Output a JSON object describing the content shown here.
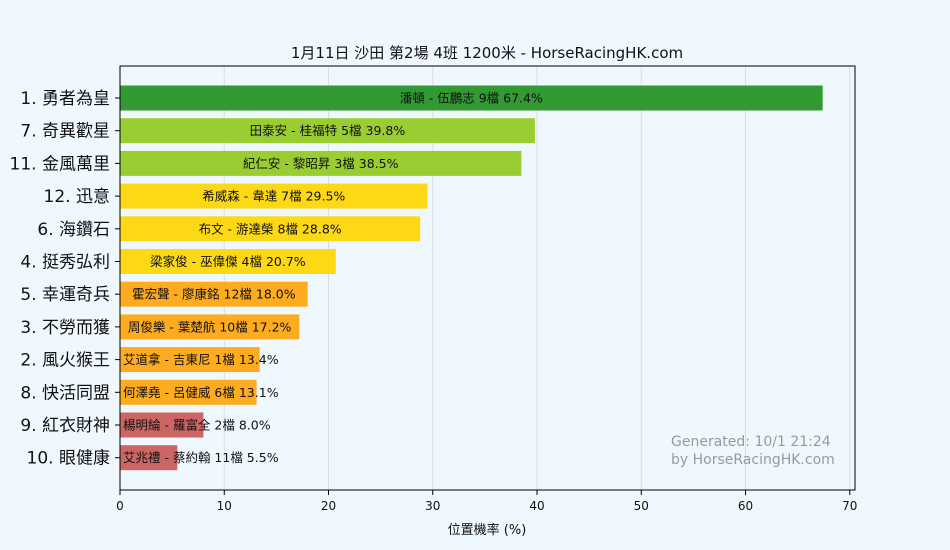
{
  "chart_data": {
    "type": "bar",
    "orientation": "horizontal",
    "title": "1月11日  沙田  第2場  4班  1200米 - HorseRacingHK.com",
    "xlabel": "位置機率 (%)",
    "ylabel": "",
    "xlim": [
      0,
      70.5
    ],
    "xticks": [
      0,
      10,
      20,
      30,
      40,
      50,
      60,
      70
    ],
    "grid": "vertical",
    "categories": [
      "1. 勇者為皇",
      "7. 奇異歡星",
      "11. 金風萬里",
      "12. 迅意",
      "6. 海鑽石",
      "4. 挺秀弘利",
      "5. 幸運奇兵",
      "3. 不勞而獲",
      "2. 風火猴王",
      "8. 快活同盟",
      "9. 紅衣財神",
      "10. 眼健康"
    ],
    "values": [
      67.4,
      39.8,
      38.5,
      29.5,
      28.8,
      20.7,
      18.0,
      17.2,
      13.4,
      13.1,
      8.0,
      5.5
    ],
    "bar_labels": [
      "潘頓 - 伍鵬志 9檔  67.4%",
      "田泰安 - 桂福特 5檔  39.8%",
      "紀仁安 - 黎昭昇 3檔  38.5%",
      "希威森 - 韋達 7檔  29.5%",
      "布文 - 游達榮 8檔  28.8%",
      "梁家俊 - 巫偉傑 4檔  20.7%",
      "霍宏聲 - 廖康銘 12檔  18.0%",
      "周俊樂 - 葉楚航 10檔  17.2%",
      "艾道拿 - 吉東尼 1檔  13.4%",
      "何澤堯 - 呂健威 6檔  13.1%",
      "楊明綸 - 羅富全 2檔  8.0%",
      "艾兆禮 - 蔡約翰 11檔  5.5%"
    ],
    "colors": [
      "#339933",
      "#9acd32",
      "#9acd32",
      "#fcd815",
      "#fcd815",
      "#fcd815",
      "#fdab20",
      "#fdab20",
      "#fdab20",
      "#fdab20",
      "#cd6565",
      "#cd6565"
    ],
    "watermark": [
      "Generated: 10/1 21:24",
      "by HorseRacingHK.com"
    ]
  }
}
